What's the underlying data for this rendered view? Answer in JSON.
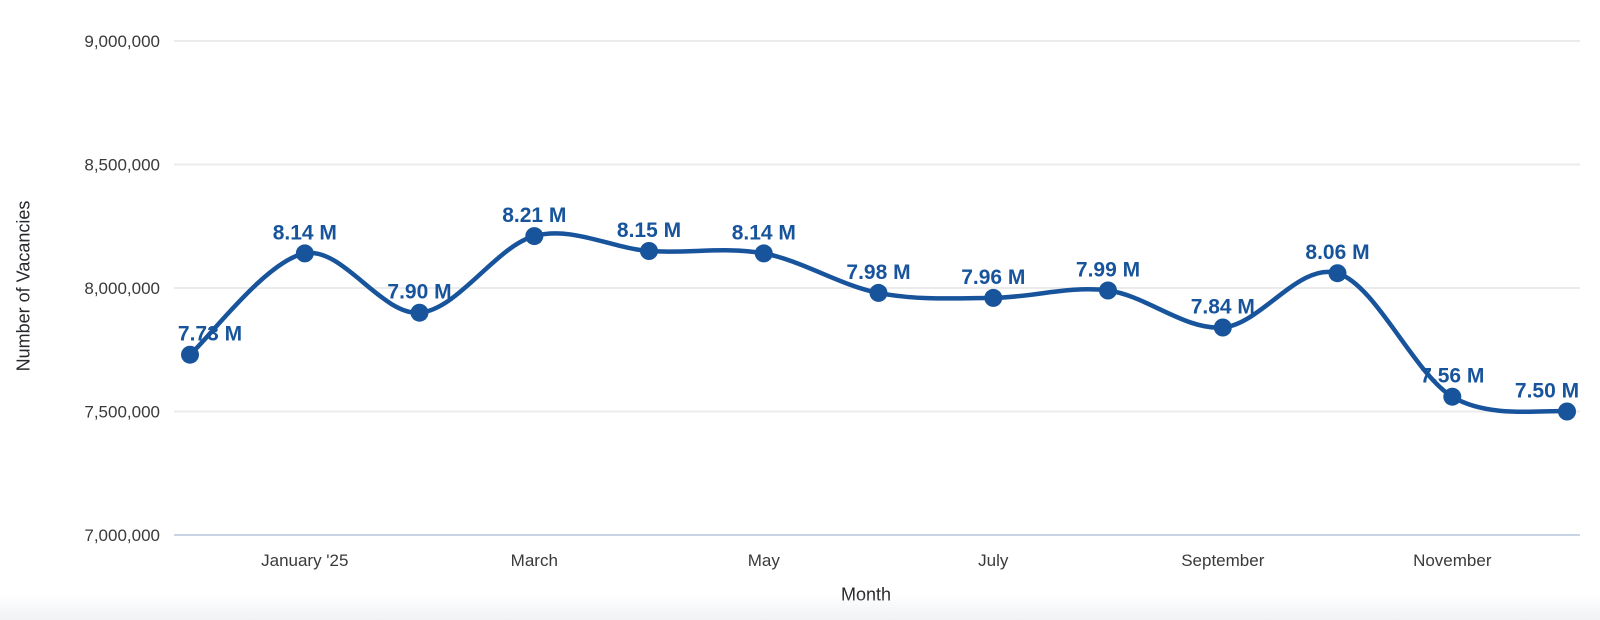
{
  "chart_data": {
    "type": "line",
    "title": "",
    "xlabel": "Month",
    "ylabel": "Number of Vacancies",
    "ylim": [
      7000000,
      9000000
    ],
    "grid": true,
    "legend": "none",
    "curve": "smooth",
    "y_ticks": [
      {
        "label": "9,000,000",
        "value": 9000000
      },
      {
        "label": "8,500,000",
        "value": 8500000
      },
      {
        "label": "8,000,000",
        "value": 8000000
      },
      {
        "label": "7,500,000",
        "value": 7500000
      },
      {
        "label": "7,000,000",
        "value": 7000000
      }
    ],
    "x_ticks": [
      {
        "label": "January '25",
        "month_index": 1
      },
      {
        "label": "March",
        "month_index": 3
      },
      {
        "label": "May",
        "month_index": 5
      },
      {
        "label": "July",
        "month_index": 7
      },
      {
        "label": "September",
        "month_index": 9
      },
      {
        "label": "November",
        "month_index": 11
      }
    ],
    "points": [
      {
        "month_index": 0,
        "value_millions": 7.73,
        "annotation": "7.73 M"
      },
      {
        "month_index": 1,
        "value_millions": 8.14,
        "annotation": "8.14 M"
      },
      {
        "month_index": 2,
        "value_millions": 7.9,
        "annotation": "7.90 M"
      },
      {
        "month_index": 3,
        "value_millions": 8.21,
        "annotation": "8.21 M"
      },
      {
        "month_index": 4,
        "value_millions": 8.15,
        "annotation": "8.15 M"
      },
      {
        "month_index": 5,
        "value_millions": 8.14,
        "annotation": "8.14 M"
      },
      {
        "month_index": 6,
        "value_millions": 7.98,
        "annotation": "7.98 M"
      },
      {
        "month_index": 7,
        "value_millions": 7.96,
        "annotation": "7.96 M"
      },
      {
        "month_index": 8,
        "value_millions": 7.99,
        "annotation": "7.99 M"
      },
      {
        "month_index": 9,
        "value_millions": 7.84,
        "annotation": "7.84 M"
      },
      {
        "month_index": 10,
        "value_millions": 8.06,
        "annotation": "8.06 M"
      },
      {
        "month_index": 11,
        "value_millions": 7.56,
        "annotation": "7.56 M"
      },
      {
        "month_index": 12,
        "value_millions": 7.5,
        "annotation": "7.50 M"
      }
    ],
    "colors": {
      "series": "#17549b",
      "annotation": "#17549b",
      "gridline": "#ebebeb",
      "baseline": "#c9d4e4",
      "tick_label": "#3a3a3a",
      "axis_title": "#26282b"
    }
  }
}
